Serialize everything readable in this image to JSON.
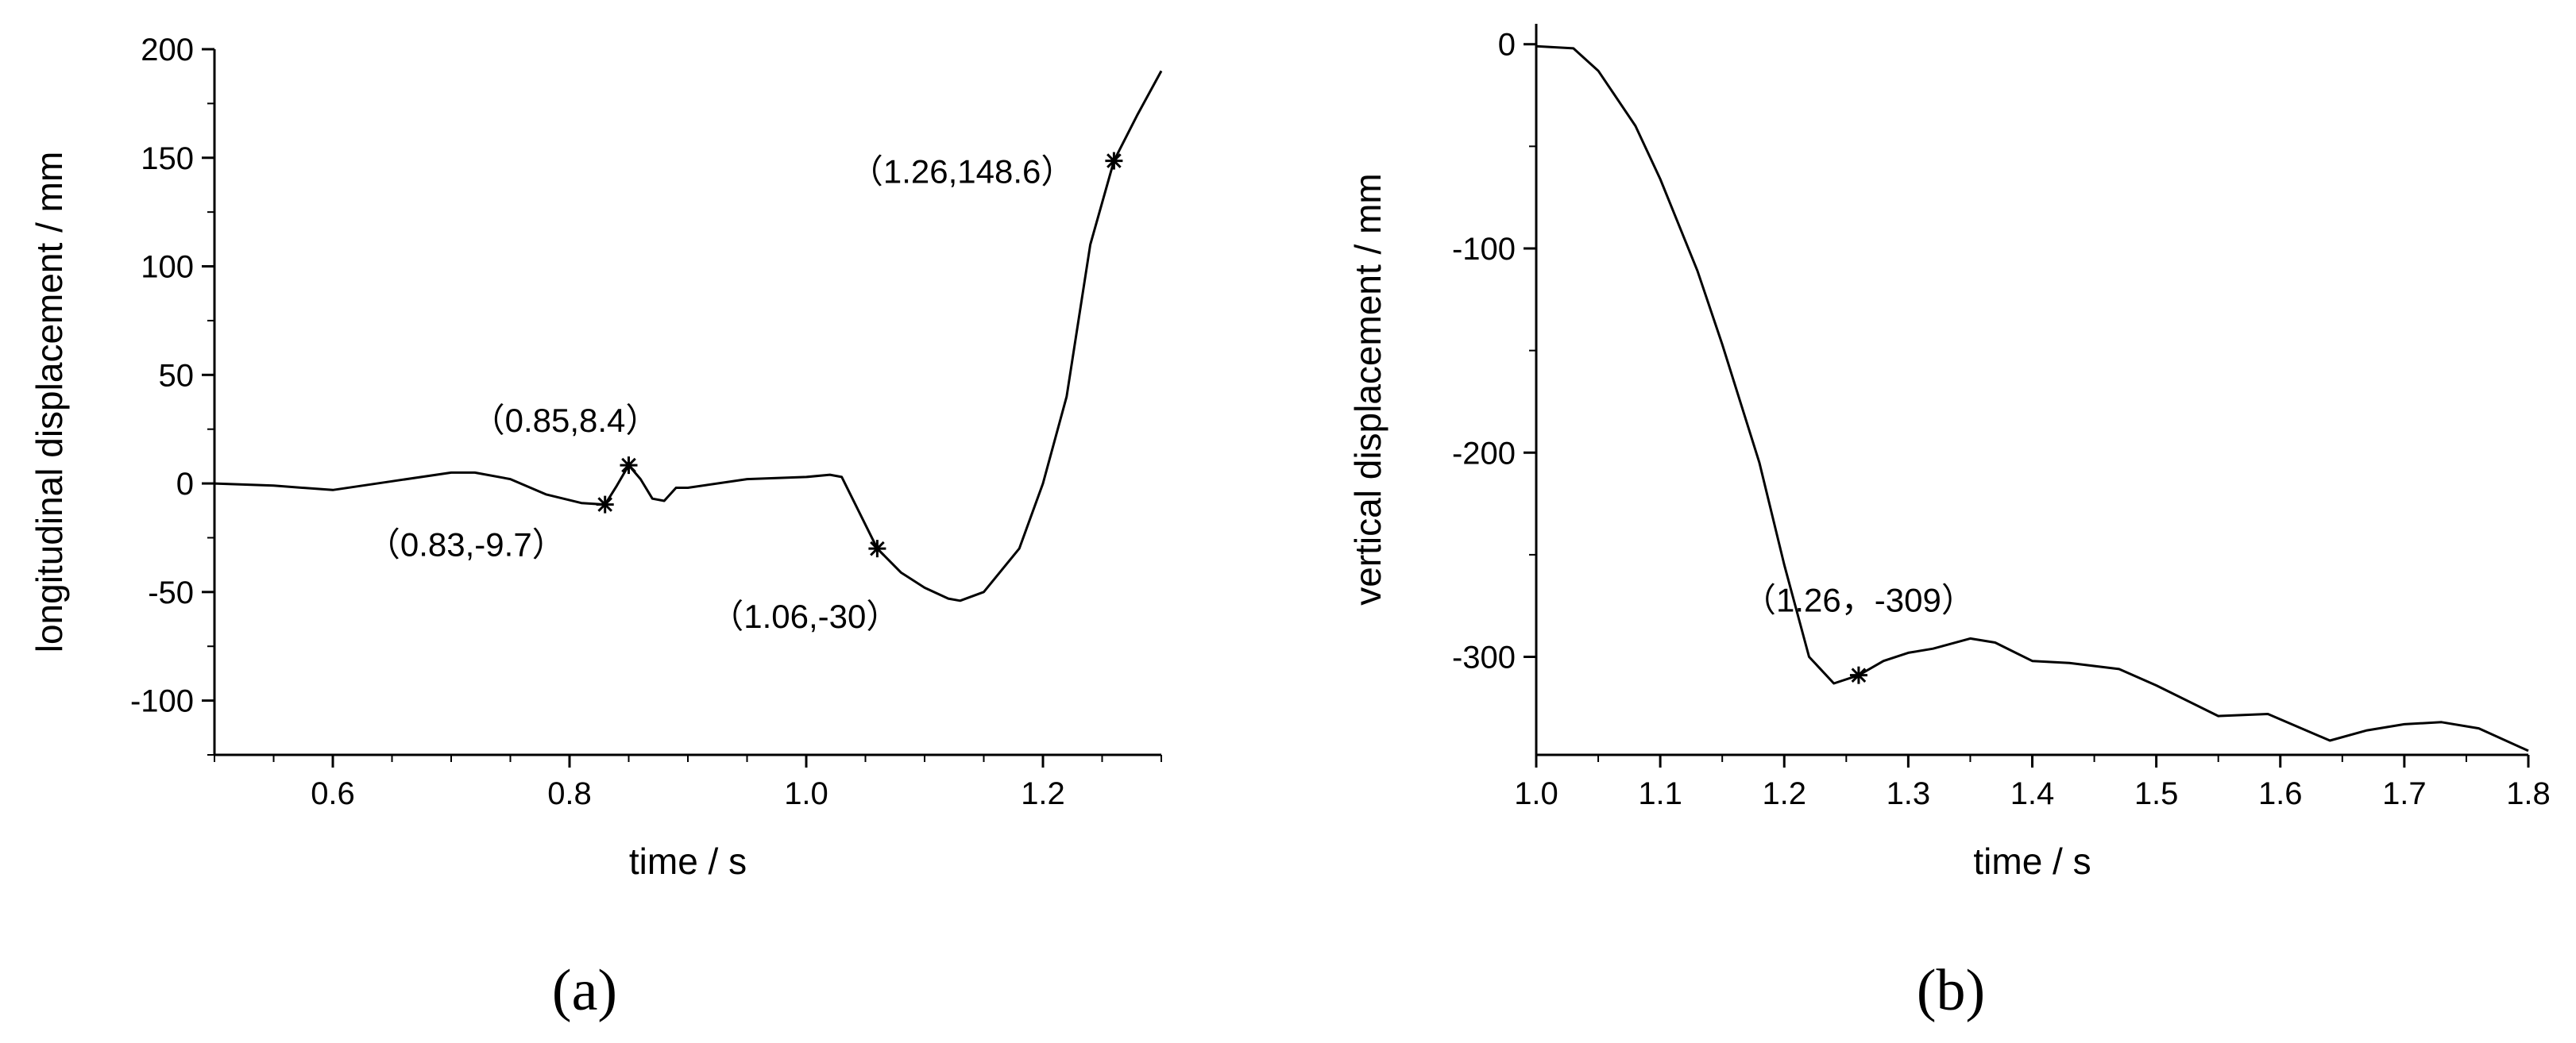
{
  "chart_data": [
    {
      "type": "line",
      "panel_label": "(a)",
      "xlabel": "time / s",
      "ylabel": "longitudinal displacement / mm",
      "xlim": [
        0.5,
        1.3
      ],
      "ylim": [
        -125,
        200
      ],
      "xticks": [
        0.6,
        0.8,
        1.0,
        1.2
      ],
      "xtick_labels": [
        "0.6",
        "0.8",
        "1.0",
        "1.2"
      ],
      "yticks": [
        200,
        150,
        100,
        50,
        0,
        -50,
        -100
      ],
      "ytick_labels": [
        "200",
        "150",
        "100",
        "50",
        "0",
        "-50",
        "-100"
      ],
      "grid": false,
      "series": [
        {
          "x": [
            0.5,
            0.55,
            0.6,
            0.65,
            0.7,
            0.72,
            0.75,
            0.78,
            0.81,
            0.83,
            0.84,
            0.85,
            0.86,
            0.87,
            0.88,
            0.89,
            0.9,
            0.95,
            1.0,
            1.02,
            1.03,
            1.06,
            1.08,
            1.1,
            1.12,
            1.13,
            1.15,
            1.18,
            1.2,
            1.22,
            1.24,
            1.26,
            1.28,
            1.3
          ],
          "y": [
            0,
            -1,
            -3,
            1,
            5,
            5,
            2,
            -5,
            -9,
            -9.7,
            -1,
            8.4,
            2,
            -7,
            -8,
            -2,
            -2,
            2,
            3,
            4,
            3,
            -30,
            -41,
            -48,
            -53,
            -54,
            -50,
            -30,
            0,
            40,
            110,
            148.6,
            170,
            190
          ]
        }
      ],
      "markers": [
        {
          "x": 0.83,
          "y": -9.7,
          "label": "（0.83,-9.7）"
        },
        {
          "x": 0.85,
          "y": 8.4,
          "label": "（0.85,8.4）"
        },
        {
          "x": 1.06,
          "y": -30,
          "label": "（1.06,-30）"
        },
        {
          "x": 1.26,
          "y": 148.6,
          "label": "（1.26,148.6）"
        }
      ]
    },
    {
      "type": "line",
      "panel_label": "(b)",
      "xlabel": "time / s",
      "ylabel": "vertical displacement / mm",
      "xlim": [
        1.0,
        1.8
      ],
      "ylim": [
        -348,
        10
      ],
      "xticks": [
        1.0,
        1.1,
        1.2,
        1.3,
        1.4,
        1.5,
        1.6,
        1.7,
        1.8
      ],
      "xtick_labels": [
        "1.0",
        "1.1",
        "1.2",
        "1.3",
        "1.4",
        "1.5",
        "1.6",
        "1.7",
        "1.8"
      ],
      "yticks": [
        0,
        -100,
        -200,
        -300
      ],
      "ytick_labels": [
        "0",
        "-100",
        "-200",
        "-300"
      ],
      "grid": false,
      "series": [
        {
          "x": [
            1.0,
            1.03,
            1.05,
            1.08,
            1.1,
            1.13,
            1.15,
            1.18,
            1.2,
            1.22,
            1.24,
            1.26,
            1.28,
            1.3,
            1.32,
            1.35,
            1.37,
            1.4,
            1.43,
            1.47,
            1.5,
            1.55,
            1.59,
            1.64,
            1.67,
            1.7,
            1.73,
            1.76,
            1.8
          ],
          "y": [
            -1,
            -2,
            -13,
            -40,
            -66,
            -111,
            -147,
            -205,
            -255,
            -300,
            -313,
            -309,
            -302,
            -298,
            -296,
            -291,
            -293,
            -302,
            -303,
            -306,
            -314,
            -329,
            -328,
            -341,
            -336,
            -333,
            -332,
            -335,
            -346
          ]
        }
      ],
      "markers": [
        {
          "x": 1.26,
          "y": -309,
          "label": "（1.26，-309）"
        }
      ]
    }
  ]
}
